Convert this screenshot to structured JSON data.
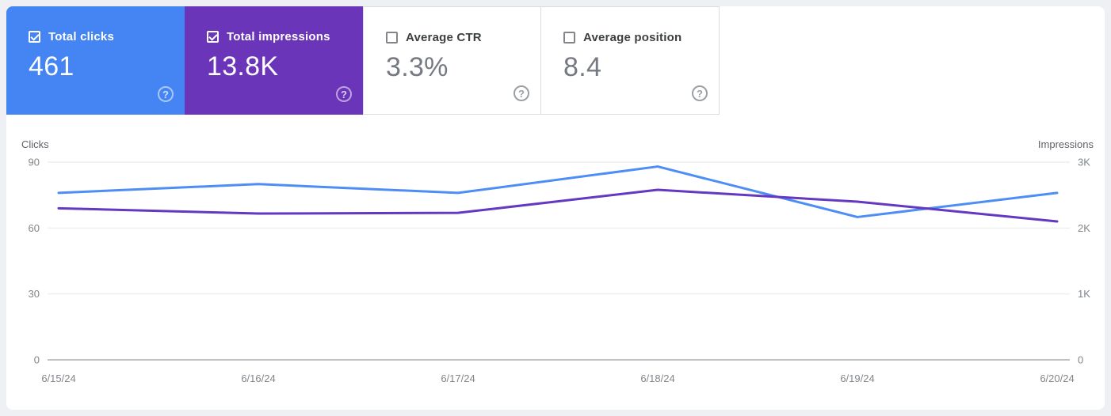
{
  "help_icon": "?",
  "cards": [
    {
      "label": "Total clicks",
      "value": "461",
      "checked": true,
      "bg": "#4484f3"
    },
    {
      "label": "Total impressions",
      "value": "13.8K",
      "checked": true,
      "bg": "#6a35b8"
    },
    {
      "label": "Average CTR",
      "value": "3.3%",
      "checked": false,
      "bg": "#ffffff"
    },
    {
      "label": "Average position",
      "value": "8.4",
      "checked": false,
      "bg": "#ffffff"
    }
  ],
  "chart_data": {
    "type": "line",
    "x": [
      "6/15/24",
      "6/16/24",
      "6/17/24",
      "6/18/24",
      "6/19/24",
      "6/20/24"
    ],
    "series": [
      {
        "name": "Clicks",
        "axis": "left",
        "color": "#4e8df5",
        "values": [
          76,
          80,
          76,
          88,
          65,
          76
        ]
      },
      {
        "name": "Impressions",
        "axis": "right",
        "color": "#6438c0",
        "values": [
          2300,
          2220,
          2230,
          2580,
          2400,
          2100
        ]
      }
    ],
    "left_axis": {
      "title": "Clicks",
      "max": 90,
      "ticks": [
        {
          "label": "0",
          "value": 0
        },
        {
          "label": "30",
          "value": 30
        },
        {
          "label": "60",
          "value": 60
        },
        {
          "label": "90",
          "value": 90
        }
      ]
    },
    "right_axis": {
      "title": "Impressions",
      "max": 3000,
      "ticks": [
        {
          "label": "0",
          "value": 0
        },
        {
          "label": "1K",
          "value": 1000
        },
        {
          "label": "2K",
          "value": 2000
        },
        {
          "label": "3K",
          "value": 3000
        }
      ]
    },
    "grid": "horizontal",
    "legend": "none"
  }
}
